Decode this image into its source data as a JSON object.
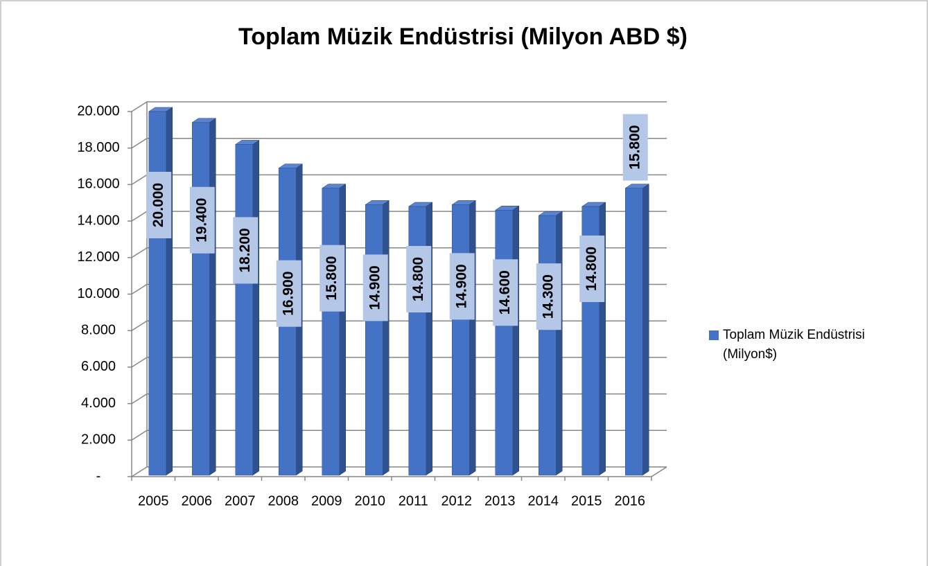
{
  "chart_data": {
    "type": "bar",
    "title": "Toplam Müzik Endüstrisi (Milyon ABD $)",
    "categories": [
      "2005",
      "2006",
      "2007",
      "2008",
      "2009",
      "2010",
      "2011",
      "2012",
      "2013",
      "2014",
      "2015",
      "2016"
    ],
    "series": [
      {
        "name": "Toplam Müzik Endüstrisi (Milyon$)",
        "color": "#4472c4",
        "values": [
          20000,
          19400,
          18200,
          16900,
          15800,
          14900,
          14800,
          14900,
          14600,
          14300,
          14800,
          15800
        ],
        "value_labels": [
          "20.000",
          "19.400",
          "18.200",
          "16.900",
          "15.800",
          "14.900",
          "14.800",
          "14.900",
          "14.600",
          "14.300",
          "14.800",
          "15.800"
        ]
      }
    ],
    "ylim": [
      0,
      20000
    ],
    "yticks": [
      {
        "value": 0,
        "label": "-"
      },
      {
        "value": 2000,
        "label": "2.000"
      },
      {
        "value": 4000,
        "label": "4.000"
      },
      {
        "value": 6000,
        "label": "6.000"
      },
      {
        "value": 8000,
        "label": "8.000"
      },
      {
        "value": 10000,
        "label": "10.000"
      },
      {
        "value": 12000,
        "label": "12.000"
      },
      {
        "value": 14000,
        "label": "14.000"
      },
      {
        "value": 16000,
        "label": "16.000"
      },
      {
        "value": 18000,
        "label": "18.000"
      },
      {
        "value": 20000,
        "label": "20.000"
      }
    ],
    "grid": true,
    "legend": "right"
  }
}
